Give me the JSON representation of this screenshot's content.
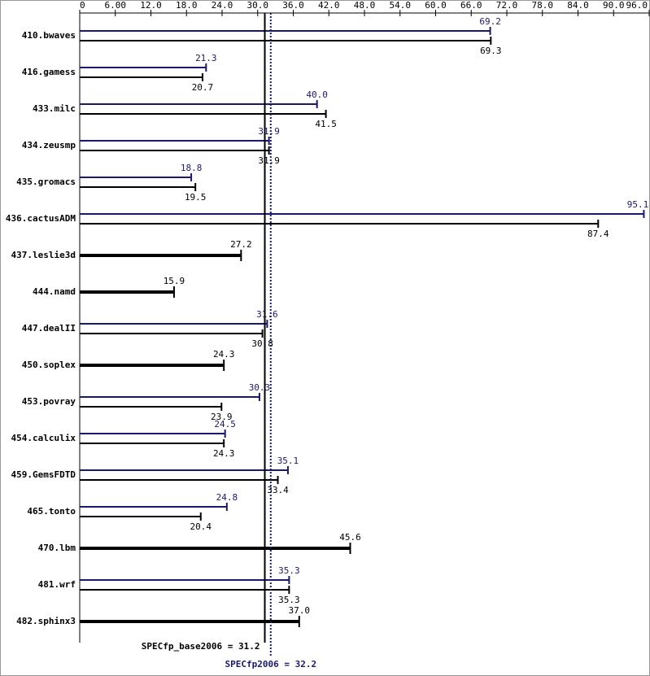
{
  "chart_data": {
    "type": "bar",
    "orientation": "horizontal",
    "categories": [
      "410.bwaves",
      "416.gamess",
      "433.milc",
      "434.zeusmp",
      "435.gromacs",
      "436.cactusADM",
      "437.leslie3d",
      "444.namd",
      "447.dealII",
      "450.soplex",
      "453.povray",
      "454.calculix",
      "459.GemsFDTD",
      "465.tonto",
      "470.lbm",
      "481.wrf",
      "482.sphinx3"
    ],
    "series": [
      {
        "color": "#191970",
        "values": [
          69.2,
          21.3,
          40.0,
          31.9,
          18.8,
          95.1,
          null,
          null,
          31.6,
          null,
          30.3,
          24.5,
          35.1,
          24.8,
          null,
          35.3,
          null
        ],
        "value_labels": [
          "69.2",
          "21.3",
          "40.0",
          "31.9",
          "18.8",
          "95.1",
          null,
          null,
          "31.6",
          null,
          "30.3",
          "24.5",
          "35.1",
          "24.8",
          null,
          "35.3",
          null
        ]
      },
      {
        "color": "#000000",
        "values": [
          69.3,
          20.7,
          41.5,
          31.9,
          19.5,
          87.4,
          27.2,
          15.9,
          30.8,
          24.3,
          23.9,
          24.3,
          33.4,
          20.4,
          45.6,
          35.3,
          37.0
        ],
        "value_labels": [
          "69.3",
          "20.7",
          "41.5",
          "31.9",
          "19.5",
          "87.4",
          "27.2",
          "15.9",
          "30.8",
          "24.3",
          "23.9",
          "24.3",
          "33.4",
          "20.4",
          "45.6",
          "35.3",
          "37.0"
        ]
      }
    ],
    "xlim": [
      0,
      96
    ],
    "xticks": [
      0,
      {
        "value": 6,
        "label": "6.00"
      },
      {
        "value": 12,
        "label": "12.0"
      },
      {
        "value": 18,
        "label": "18.0"
      },
      {
        "value": 24,
        "label": "24.0"
      },
      {
        "value": 30,
        "label": "30.0"
      },
      {
        "value": 36,
        "label": "36.0"
      },
      {
        "value": 42,
        "label": "42.0"
      },
      {
        "value": 48,
        "label": "48.0"
      },
      {
        "value": 54,
        "label": "54.0"
      },
      {
        "value": 60,
        "label": "60.0"
      },
      {
        "value": 66,
        "label": "66.0"
      },
      {
        "value": 72,
        "label": "72.0"
      },
      {
        "value": 78,
        "label": "78.0"
      },
      {
        "value": 84,
        "label": "84.0"
      },
      {
        "value": 90,
        "label": "90.0"
      },
      {
        "value": 96,
        "label": "96.0"
      }
    ],
    "reference_lines": [
      {
        "text": "SPECfp_base2006 = 31.2",
        "value": 31.2,
        "color": "#000000",
        "style": "solid"
      },
      {
        "text": "SPECfp2006 = 32.2",
        "value": 32.2,
        "color": "#191970",
        "style": "dotted"
      }
    ]
  }
}
